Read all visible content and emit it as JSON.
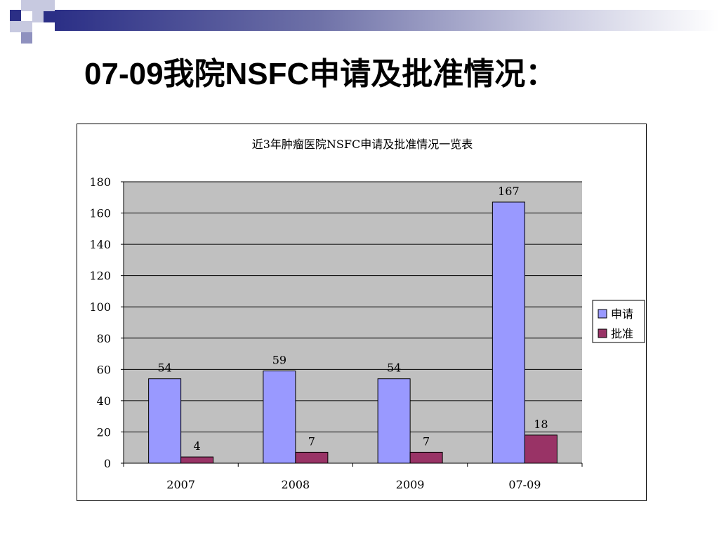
{
  "slide": {
    "title": "07-09我院NSFC申请及批准情况："
  },
  "colors": {
    "band_dark": "#2b2f86",
    "plot_bg": "#c0c0c0",
    "series_apply": "#9999ff",
    "series_approve": "#993366"
  },
  "chart_data": {
    "type": "bar",
    "title": "近3年肿瘤医院NSFC申请及批准情况一览表",
    "categories": [
      "2007",
      "2008",
      "2009",
      "07-09"
    ],
    "series": [
      {
        "name": "申请",
        "values": [
          54,
          59,
          54,
          167
        ],
        "color": "#9999ff"
      },
      {
        "name": "批准",
        "values": [
          4,
          7,
          7,
          18
        ],
        "color": "#993366"
      }
    ],
    "ylim": [
      0,
      180
    ],
    "yticks": [
      0,
      20,
      40,
      60,
      80,
      100,
      120,
      140,
      160,
      180
    ],
    "grid": true,
    "legend": "right",
    "data_labels": true
  }
}
